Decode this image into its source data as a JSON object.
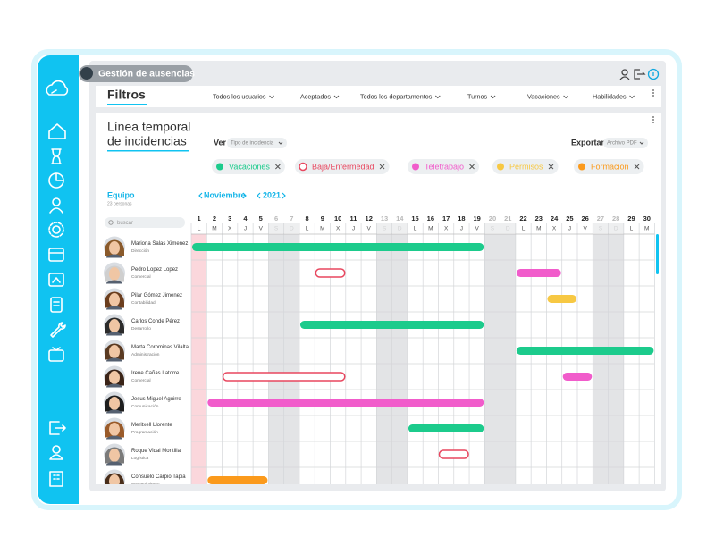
{
  "app": {
    "title": "Gestión de ausencias"
  },
  "filters": {
    "title": "Filtros",
    "dropdowns": [
      "Todos los usuarios",
      "Aceptados",
      "Todos los departamentos",
      "Turnos",
      "Vacaciones",
      "Habilidades"
    ]
  },
  "timeline": {
    "title_lines": [
      "Línea temporal",
      "de incidencias"
    ],
    "view_label": "Ver",
    "view_select": "Tipo de incidencia",
    "export_label": "Exportar",
    "export_select": "Archivo PDF",
    "legend": [
      {
        "label": "Vacaciones",
        "color": "#1ccb8c",
        "style": "filled"
      },
      {
        "label": "Baja/Enfermedad",
        "color": "#e8475f",
        "style": "outline"
      },
      {
        "label": "Teletrabajo",
        "color": "#f15ccb",
        "style": "filled"
      },
      {
        "label": "Permisos",
        "color": "#f7c843",
        "style": "filled"
      },
      {
        "label": "Formación",
        "color": "#fb9a1c",
        "style": "filled"
      }
    ],
    "team": {
      "title": "Equipo",
      "count": "23 personas",
      "search_placeholder": "buscar"
    },
    "month": "Noviembre",
    "year": "2021",
    "days": [
      {
        "number": 1,
        "letter": "L",
        "today": true
      },
      {
        "number": 2,
        "letter": "M"
      },
      {
        "number": 3,
        "letter": "X"
      },
      {
        "number": 4,
        "letter": "J"
      },
      {
        "number": 5,
        "letter": "V"
      },
      {
        "number": 6,
        "letter": "S",
        "weekend": true
      },
      {
        "number": 7,
        "letter": "D",
        "weekend": true
      },
      {
        "number": 8,
        "letter": "L"
      },
      {
        "number": 9,
        "letter": "M"
      },
      {
        "number": 10,
        "letter": "X"
      },
      {
        "number": 11,
        "letter": "J"
      },
      {
        "number": 12,
        "letter": "V"
      },
      {
        "number": 13,
        "letter": "S",
        "weekend": true
      },
      {
        "number": 14,
        "letter": "D",
        "weekend": true
      },
      {
        "number": 15,
        "letter": "L"
      },
      {
        "number": 16,
        "letter": "M"
      },
      {
        "number": 17,
        "letter": "X"
      },
      {
        "number": 18,
        "letter": "J"
      },
      {
        "number": 19,
        "letter": "V"
      },
      {
        "number": 20,
        "letter": "S",
        "weekend": true
      },
      {
        "number": 21,
        "letter": "D",
        "weekend": true
      },
      {
        "number": 22,
        "letter": "L"
      },
      {
        "number": 23,
        "letter": "M"
      },
      {
        "number": 24,
        "letter": "X"
      },
      {
        "number": 25,
        "letter": "J"
      },
      {
        "number": 26,
        "letter": "V"
      },
      {
        "number": 27,
        "letter": "S",
        "weekend": true
      },
      {
        "number": 28,
        "letter": "D",
        "weekend": true
      },
      {
        "number": 29,
        "letter": "L"
      },
      {
        "number": 30,
        "letter": "M"
      }
    ],
    "people": [
      {
        "name": "Mariona Salas Ximenez",
        "department": "Dirección",
        "absences": [
          {
            "type": 0,
            "start": 1,
            "end": 19
          }
        ]
      },
      {
        "name": "Pedro Lopez Lopez",
        "department": "Comercial",
        "absences": [
          {
            "type": 1,
            "start": 9,
            "end": 10
          },
          {
            "type": 2,
            "start": 22,
            "end": 24
          }
        ]
      },
      {
        "name": "Pilar Gómez Jimenez",
        "department": "Contabilidad",
        "absences": [
          {
            "type": 3,
            "start": 24,
            "end": 25
          }
        ]
      },
      {
        "name": "Carlos Conde Pérez",
        "department": "Desarrollo",
        "absences": [
          {
            "type": 0,
            "start": 8,
            "end": 19
          }
        ]
      },
      {
        "name": "Marta Corominas Vilalta",
        "department": "Administración",
        "absences": [
          {
            "type": 0,
            "start": 22,
            "end": 30
          }
        ]
      },
      {
        "name": "Irene Cañas Latorre",
        "department": "Comercial",
        "absences": [
          {
            "type": 1,
            "start": 3,
            "end": 10
          },
          {
            "type": 2,
            "start": 25,
            "end": 26
          }
        ]
      },
      {
        "name": "Jesus Miguel Aguirre",
        "department": "Comunicación",
        "absences": [
          {
            "type": 2,
            "start": 2,
            "end": 19
          }
        ]
      },
      {
        "name": "Meritxell Llorente",
        "department": "Programación",
        "absences": [
          {
            "type": 0,
            "start": 15,
            "end": 19
          }
        ]
      },
      {
        "name": "Roque Vidal Montilla",
        "department": "Logística",
        "absences": [
          {
            "type": 1,
            "start": 17,
            "end": 18
          }
        ]
      },
      {
        "name": "Consuelo Carpio Tapia",
        "department": "Mantenimiento",
        "absences": [
          {
            "type": 4,
            "start": 2,
            "end": 5
          }
        ]
      }
    ]
  }
}
